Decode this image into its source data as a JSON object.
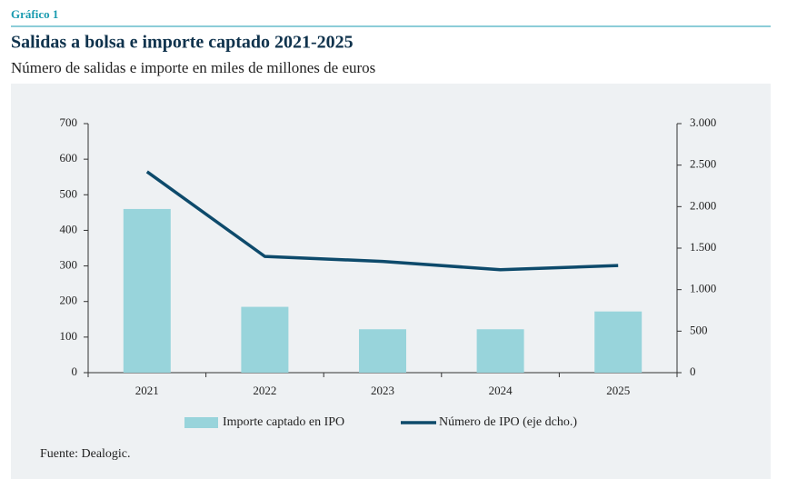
{
  "header": {
    "label": "Gráfico 1"
  },
  "chart_data": {
    "type": "bar",
    "title": "Salidas a bolsa e importe captado 2021-2025",
    "subtitle": "Número de salidas e importe en miles de millones de euros",
    "categories": [
      "2021",
      "2022",
      "2023",
      "2024",
      "2025"
    ],
    "series": [
      {
        "name": "Importe captado en IPO",
        "type": "bar",
        "color": "#98d4db",
        "values": [
          460,
          185,
          122,
          122,
          172
        ]
      },
      {
        "name": "Número de IPO (eje dcho.)",
        "type": "line",
        "axis": "y2",
        "color": "#0d4a6b",
        "values": [
          2420,
          1400,
          1340,
          1240,
          1290
        ]
      }
    ],
    "ylim": [
      0,
      700
    ],
    "yticks": [
      0,
      100,
      200,
      300,
      400,
      500,
      600,
      700
    ],
    "y2lim": [
      0,
      3000
    ],
    "y2ticks": [
      0,
      {
        "value": 500,
        "label": "500"
      },
      {
        "value": 1000,
        "label": "1.000"
      },
      {
        "value": 1500,
        "label": "1.500"
      },
      {
        "value": 2000,
        "label": "2.000"
      },
      {
        "value": 2500,
        "label": "2.500"
      },
      {
        "value": 3000,
        "label": "3.000"
      }
    ],
    "grid": false
  },
  "source": "Fuente: Dealogic."
}
